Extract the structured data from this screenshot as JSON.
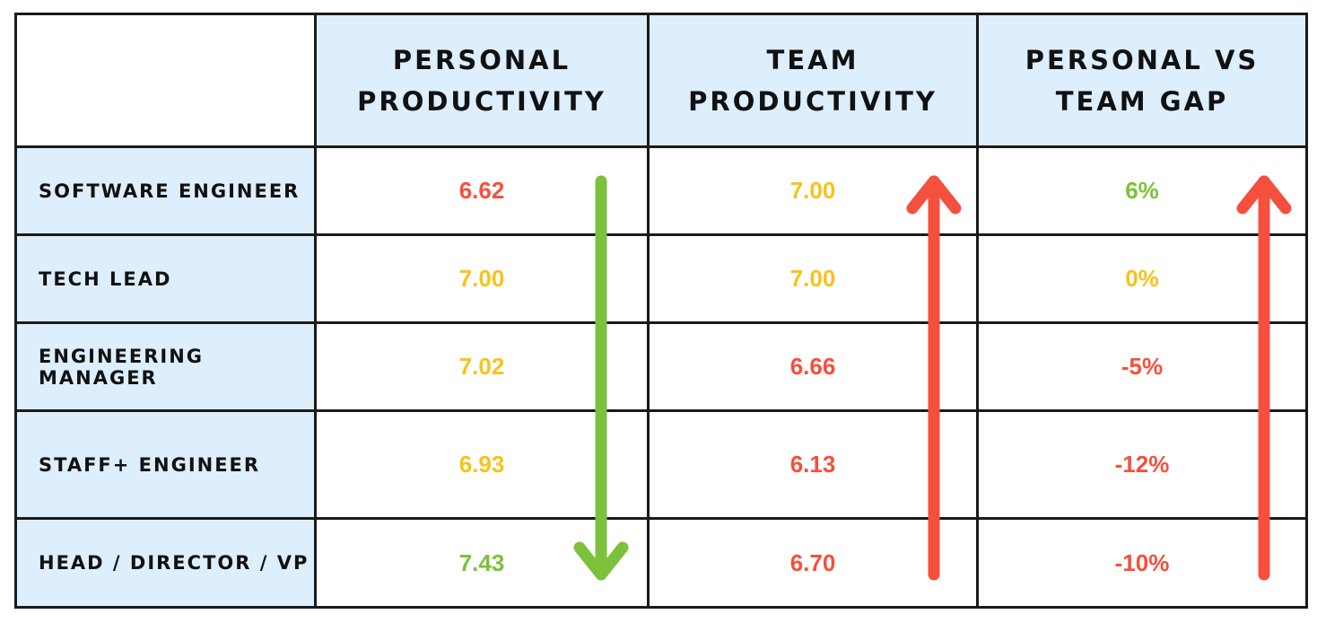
{
  "chart_data": {
    "type": "table",
    "columns": [
      "",
      "Personal Productivity",
      "Team Productivity",
      "Personal vs Team Gap"
    ],
    "rows": [
      {
        "label": "Software Engineer",
        "values": [
          "6.62",
          "7.00",
          "6%"
        ],
        "colors": [
          "#f4503d",
          "#f7c31c",
          "#7cc13b"
        ]
      },
      {
        "label": "Tech Lead",
        "values": [
          "7.00",
          "7.00",
          "0%"
        ],
        "colors": [
          "#f7c31c",
          "#f7c31c",
          "#f7c31c"
        ]
      },
      {
        "label": "Engineering Manager",
        "values": [
          "7.02",
          "6.66",
          "-5%"
        ],
        "colors": [
          "#f7c31c",
          "#f4503d",
          "#f4503d"
        ]
      },
      {
        "label": "Staff+ Engineer",
        "values": [
          "6.93",
          "6.13",
          "-12%"
        ],
        "colors": [
          "#f7c31c",
          "#f4503d",
          "#f4503d"
        ]
      },
      {
        "label": "Head / Director / VP",
        "values": [
          "7.43",
          "6.70",
          "-10%"
        ],
        "colors": [
          "#7cc13b",
          "#f4503d",
          "#f4503d"
        ]
      }
    ],
    "arrows": [
      {
        "column": 1,
        "direction": "down",
        "color": "#7cc13b"
      },
      {
        "column": 2,
        "direction": "up",
        "color": "#f4503d"
      },
      {
        "column": 3,
        "direction": "up",
        "color": "#f4503d"
      }
    ]
  }
}
